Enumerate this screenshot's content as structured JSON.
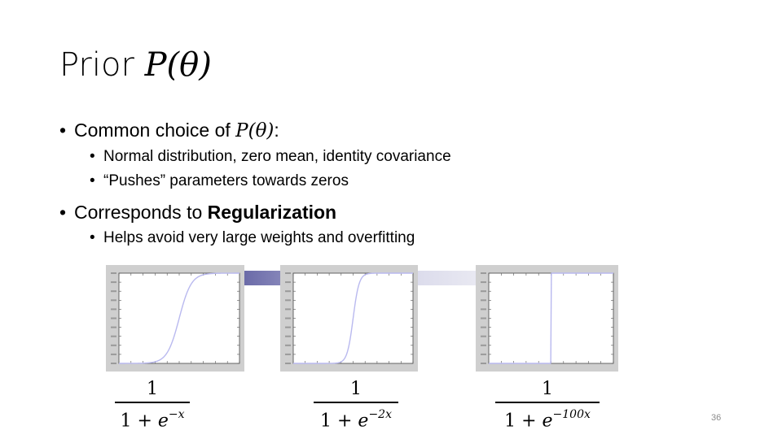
{
  "slide": {
    "title_text": "Prior ",
    "title_math": "P(θ)",
    "bullets": [
      {
        "pre": "Common choice of ",
        "math": "P(θ)",
        "post": ":",
        "sub": [
          "Normal distribution, zero mean, identity covariance",
          "“Pushes” parameters towards zeros"
        ]
      },
      {
        "pre": "Corresponds to ",
        "bold": "Regularization",
        "sub": [
          "Helps avoid very large weights and overfitting"
        ]
      }
    ],
    "page_number": "36"
  },
  "plots": [
    {
      "steepness": 1,
      "fraction": {
        "numerator": "1",
        "denominator_base": "1 + ",
        "e": "e",
        "exponent": "−x"
      }
    },
    {
      "steepness": 2,
      "fraction": {
        "numerator": "1",
        "denominator_base": "1 + ",
        "e": "e",
        "exponent": "−2x"
      }
    },
    {
      "steepness": 100,
      "fraction": {
        "numerator": "1",
        "denominator_base": "1 + ",
        "e": "e",
        "exponent": "−100x"
      }
    }
  ],
  "colors": {
    "curve": "#b9b9ef",
    "band_dark": "#6b6ba8",
    "band_light": "#dcdcec",
    "panel": "#cfcfcf"
  }
}
